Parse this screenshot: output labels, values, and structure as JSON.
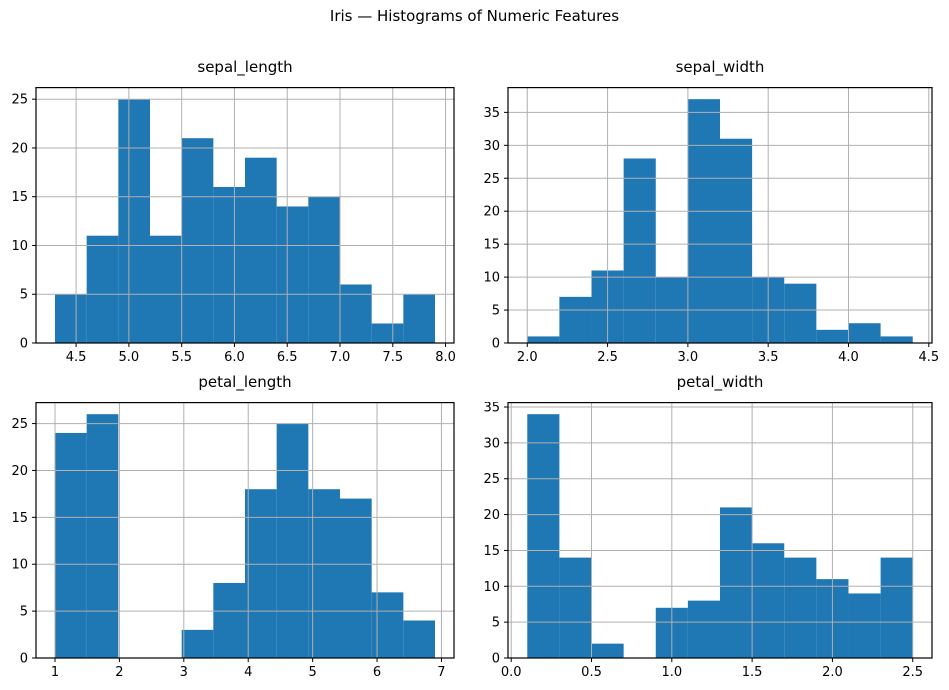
{
  "figure": {
    "title": "Iris — Histograms of Numeric Features"
  },
  "colors": {
    "bar": "#1f77b4",
    "grid": "#b0b0b0",
    "spine": "#000000",
    "text": "#000000",
    "background": "#ffffff"
  },
  "chart_data": [
    {
      "type": "bar",
      "subtype": "histogram",
      "title": "sepal_length",
      "xlabel": "",
      "ylabel": "",
      "grid": true,
      "bin_start": 4.3,
      "bin_end": 7.9,
      "bin_count": 12,
      "counts": [
        5,
        11,
        25,
        11,
        21,
        16,
        19,
        14,
        15,
        6,
        2,
        5
      ],
      "xlim": [
        4.12,
        8.08
      ],
      "ylim": [
        0,
        26.25
      ],
      "xtick_values": [
        4.5,
        5.0,
        5.5,
        6.0,
        6.5,
        7.0,
        7.5,
        8.0
      ],
      "xtick_labels": [
        "4.5",
        "5.0",
        "5.5",
        "6.0",
        "6.5",
        "7.0",
        "7.5",
        "8.0"
      ],
      "ytick_values": [
        0,
        5,
        10,
        15,
        20,
        25
      ],
      "ytick_labels": [
        "0",
        "5",
        "10",
        "15",
        "20",
        "25"
      ]
    },
    {
      "type": "bar",
      "subtype": "histogram",
      "title": "sepal_width",
      "xlabel": "",
      "ylabel": "",
      "grid": true,
      "bin_start": 2.0,
      "bin_end": 4.4,
      "bin_count": 12,
      "counts": [
        1,
        7,
        11,
        28,
        10,
        37,
        31,
        10,
        9,
        2,
        3,
        1
      ],
      "xlim": [
        1.88,
        4.52
      ],
      "ylim": [
        0,
        38.85
      ],
      "xtick_values": [
        2.0,
        2.5,
        3.0,
        3.5,
        4.0,
        4.5
      ],
      "xtick_labels": [
        "2.0",
        "2.5",
        "3.0",
        "3.5",
        "4.0",
        "4.5"
      ],
      "ytick_values": [
        0,
        5,
        10,
        15,
        20,
        25,
        30,
        35
      ],
      "ytick_labels": [
        "0",
        "5",
        "10",
        "15",
        "20",
        "25",
        "30",
        "35"
      ]
    },
    {
      "type": "bar",
      "subtype": "histogram",
      "title": "petal_length",
      "xlabel": "",
      "ylabel": "",
      "grid": true,
      "bin_start": 1.0,
      "bin_end": 6.9,
      "bin_count": 12,
      "counts": [
        24,
        26,
        0,
        0,
        3,
        8,
        18,
        25,
        18,
        17,
        7,
        4
      ],
      "xlim": [
        0.705,
        7.195
      ],
      "ylim": [
        0,
        27.3
      ],
      "xtick_values": [
        1,
        2,
        3,
        4,
        5,
        6,
        7
      ],
      "xtick_labels": [
        "1",
        "2",
        "3",
        "4",
        "5",
        "6",
        "7"
      ],
      "ytick_values": [
        0,
        5,
        10,
        15,
        20,
        25
      ],
      "ytick_labels": [
        "0",
        "5",
        "10",
        "15",
        "20",
        "25"
      ]
    },
    {
      "type": "bar",
      "subtype": "histogram",
      "title": "petal_width",
      "xlabel": "",
      "ylabel": "",
      "grid": true,
      "bin_start": 0.1,
      "bin_end": 2.5,
      "bin_count": 12,
      "counts": [
        34,
        14,
        2,
        0,
        7,
        8,
        21,
        16,
        14,
        11,
        9,
        14
      ],
      "xlim": [
        -0.02,
        2.62
      ],
      "ylim": [
        0,
        35.7
      ],
      "xtick_values": [
        0.0,
        0.5,
        1.0,
        1.5,
        2.0,
        2.5
      ],
      "xtick_labels": [
        "0.0",
        "0.5",
        "1.0",
        "1.5",
        "2.0",
        "2.5"
      ],
      "ytick_values": [
        0,
        5,
        10,
        15,
        20,
        25,
        30,
        35
      ],
      "ytick_labels": [
        "0",
        "5",
        "10",
        "15",
        "20",
        "25",
        "30",
        "35"
      ]
    }
  ]
}
